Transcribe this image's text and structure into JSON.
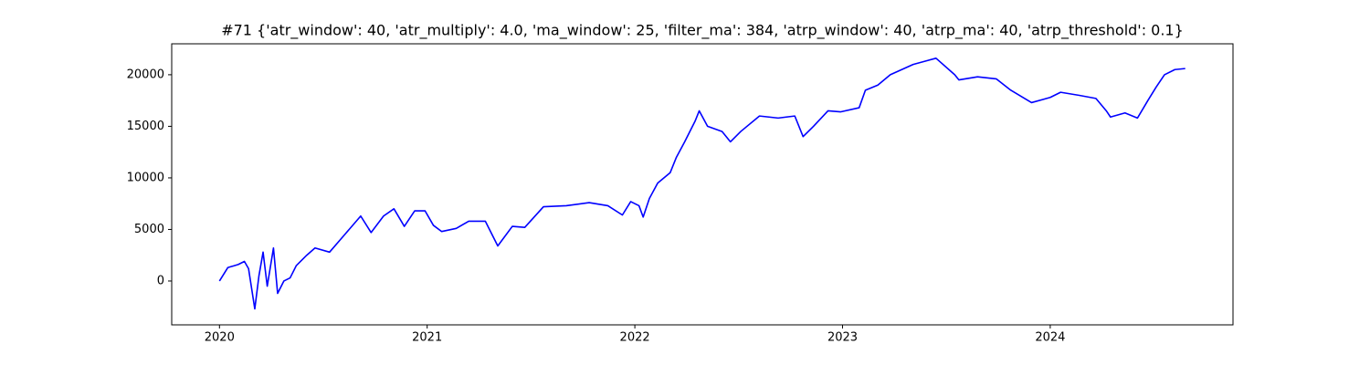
{
  "chart_data": {
    "type": "line",
    "title": "#71 {'atr_window': 40, 'atr_multiply': 4.0, 'ma_window': 25, 'filter_ma': 384, 'atrp_window': 40, 'atrp_ma': 40, 'atrp_threshold': 0.1}",
    "xlim": [
      2019.77,
      2024.88
    ],
    "ylim": [
      -4250,
      23000
    ],
    "xticks": [
      2020,
      2021,
      2022,
      2023,
      2024
    ],
    "yticks": [
      0,
      5000,
      10000,
      15000,
      20000
    ],
    "grid": false,
    "series": [
      {
        "color": "#0000ff",
        "x": [
          2020.0,
          2020.04,
          2020.09,
          2020.12,
          2020.14,
          2020.17,
          2020.19,
          2020.21,
          2020.23,
          2020.26,
          2020.28,
          2020.31,
          2020.34,
          2020.37,
          2020.42,
          2020.46,
          2020.53,
          2020.59,
          2020.68,
          2020.73,
          2020.79,
          2020.84,
          2020.89,
          2020.94,
          2020.99,
          2021.03,
          2021.07,
          2021.14,
          2021.2,
          2021.28,
          2021.32,
          2021.34,
          2021.41,
          2021.47,
          2021.56,
          2021.67,
          2021.78,
          2021.87,
          2021.94,
          2021.98,
          2022.02,
          2022.04,
          2022.07,
          2022.11,
          2022.17,
          2022.2,
          2022.24,
          2022.29,
          2022.31,
          2022.35,
          2022.42,
          2022.46,
          2022.51,
          2022.6,
          2022.69,
          2022.77,
          2022.81,
          2022.86,
          2022.93,
          2022.99,
          2023.08,
          2023.11,
          2023.17,
          2023.23,
          2023.34,
          2023.45,
          2023.54,
          2023.56,
          2023.65,
          2023.74,
          2023.81,
          2023.91,
          2024.0,
          2024.05,
          2024.14,
          2024.22,
          2024.27,
          2024.29,
          2024.36,
          2024.42,
          2024.47,
          2024.51,
          2024.55,
          2024.6,
          2024.65
        ],
        "values": [
          0,
          1300,
          1600,
          1900,
          1200,
          -2700,
          500,
          2800,
          -500,
          3200,
          -1200,
          0,
          300,
          1500,
          2500,
          3200,
          2800,
          4200,
          6300,
          4700,
          6300,
          7000,
          5300,
          6800,
          6800,
          5400,
          4800,
          5100,
          5800,
          5800,
          4200,
          3400,
          5300,
          5200,
          7200,
          7300,
          7600,
          7300,
          6400,
          7700,
          7300,
          6200,
          8000,
          9500,
          10500,
          12000,
          13500,
          15500,
          16500,
          15000,
          14500,
          13500,
          14500,
          16000,
          15800,
          16000,
          14000,
          15000,
          16500,
          16400,
          16800,
          18500,
          19000,
          20000,
          21000,
          21600,
          20000,
          19500,
          19800,
          19600,
          18500,
          17300,
          17800,
          18300,
          18000,
          17700,
          16500,
          15900,
          16300,
          15800,
          17500,
          18800,
          20000,
          20500,
          20600
        ]
      }
    ]
  }
}
